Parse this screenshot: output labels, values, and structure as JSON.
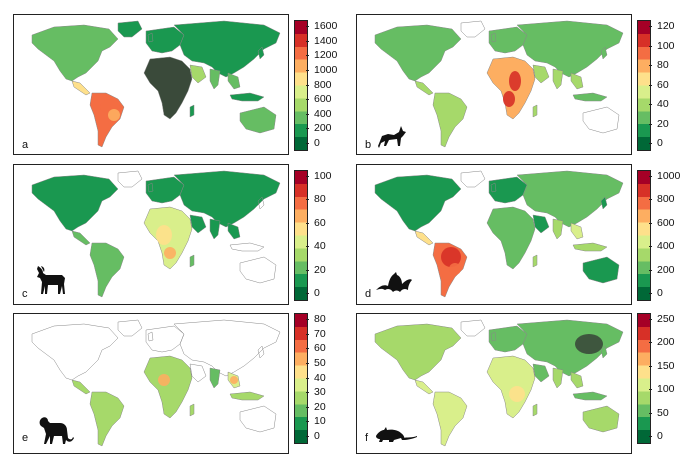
{
  "panels": [
    {
      "letter": "a",
      "icon": "none",
      "ticks": [
        "1600",
        "1400",
        "1200",
        "1000",
        "800",
        "600",
        "400",
        "200",
        "0"
      ]
    },
    {
      "letter": "b",
      "icon": "fox-silhouette-icon",
      "ticks": [
        "120",
        "100",
        "80",
        "60",
        "40",
        "20",
        "0"
      ]
    },
    {
      "letter": "c",
      "icon": "goat-silhouette-icon",
      "ticks": [
        "100",
        "80",
        "60",
        "40",
        "20",
        "0"
      ]
    },
    {
      "letter": "d",
      "icon": "bat-silhouette-icon",
      "ticks": [
        "1000",
        "800",
        "600",
        "400",
        "200",
        "0"
      ]
    },
    {
      "letter": "e",
      "icon": "monkey-silhouette-icon",
      "ticks": [
        "80",
        "70",
        "60",
        "50",
        "40",
        "30",
        "20",
        "10",
        "0"
      ]
    },
    {
      "letter": "f",
      "icon": "rodent-silhouette-icon",
      "ticks": [
        "250",
        "200",
        "150",
        "100",
        "50",
        "0"
      ]
    }
  ],
  "colors": {
    "scale": [
      "#006837",
      "#1a9850",
      "#66bd63",
      "#a6d96a",
      "#d9ef8b",
      "#fee08b",
      "#fdae61",
      "#f46d43",
      "#d73027",
      "#a50026"
    ],
    "hotspot": "#3a4a3a",
    "outline": "#888888"
  }
}
